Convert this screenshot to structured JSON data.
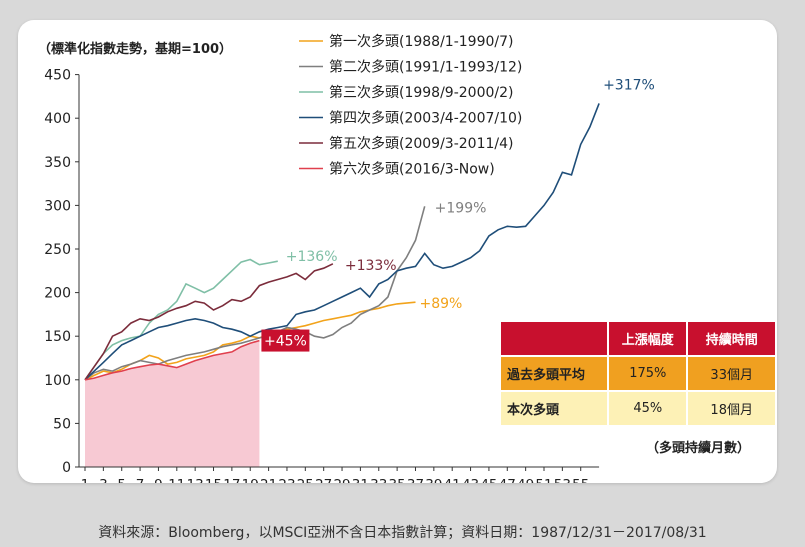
{
  "chart_data": {
    "type": "line",
    "ylabel": "（標準化指數走勢，基期=100）",
    "xlabel": "（多頭持續月數）",
    "ylim": [
      0,
      450
    ],
    "yticks": [
      0,
      50,
      100,
      150,
      200,
      250,
      300,
      350,
      400,
      450
    ],
    "xlim": [
      1,
      57
    ],
    "xticks": [
      1,
      3,
      5,
      7,
      9,
      11,
      13,
      15,
      17,
      19,
      21,
      23,
      25,
      27,
      29,
      31,
      33,
      35,
      37,
      39,
      41,
      43,
      45,
      47,
      49,
      51,
      53,
      55
    ],
    "grid": false,
    "legend_position": "top",
    "series": [
      {
        "name": "第一次多頭(1988/1-1990/7)",
        "color": "#f2a31b",
        "end_label": "+89%",
        "x": [
          1,
          2,
          3,
          4,
          5,
          6,
          7,
          8,
          9,
          10,
          11,
          12,
          13,
          14,
          15,
          16,
          17,
          18,
          19,
          20,
          21,
          22,
          23,
          24,
          25,
          26,
          27,
          28,
          29,
          30,
          31,
          32,
          33,
          34,
          35,
          36,
          37
        ],
        "y": [
          100,
          105,
          110,
          108,
          112,
          118,
          122,
          128,
          125,
          118,
          120,
          124,
          126,
          128,
          132,
          140,
          142,
          145,
          150,
          148,
          152,
          155,
          158,
          160,
          162,
          165,
          168,
          170,
          172,
          174,
          178,
          180,
          182,
          185,
          187,
          188,
          189
        ]
      },
      {
        "name": "第二次多頭(1991/1-1993/12)",
        "color": "#7f7f7f",
        "end_label": "+199%",
        "x": [
          1,
          2,
          3,
          4,
          5,
          6,
          7,
          8,
          9,
          10,
          11,
          12,
          13,
          14,
          15,
          16,
          17,
          18,
          19,
          20,
          21,
          22,
          23,
          24,
          25,
          26,
          27,
          28,
          29,
          30,
          31,
          32,
          33,
          34,
          35,
          36,
          37,
          38
        ],
        "y": [
          100,
          108,
          112,
          110,
          115,
          118,
          122,
          120,
          118,
          122,
          125,
          128,
          130,
          132,
          135,
          138,
          140,
          142,
          145,
          148,
          150,
          155,
          160,
          158,
          155,
          150,
          148,
          152,
          160,
          165,
          175,
          180,
          185,
          195,
          225,
          240,
          260,
          299
        ]
      },
      {
        "name": "第三次多頭(1998/9-2000/2)",
        "color": "#7fbfa6",
        "end_label": "+136%",
        "x": [
          1,
          2,
          3,
          4,
          5,
          6,
          7,
          8,
          9,
          10,
          11,
          12,
          13,
          14,
          15,
          16,
          17,
          18,
          19,
          20,
          21,
          22
        ],
        "y": [
          100,
          115,
          130,
          140,
          145,
          148,
          150,
          165,
          175,
          180,
          190,
          210,
          205,
          200,
          205,
          215,
          225,
          235,
          238,
          232,
          234,
          236
        ]
      },
      {
        "name": "第四次多頭(2003/4-2007/10)",
        "color": "#1f4e79",
        "end_label": "+317%",
        "x": [
          1,
          2,
          3,
          4,
          5,
          6,
          7,
          8,
          9,
          10,
          11,
          12,
          13,
          14,
          15,
          16,
          17,
          18,
          19,
          20,
          21,
          22,
          23,
          24,
          25,
          26,
          27,
          28,
          29,
          30,
          31,
          32,
          33,
          34,
          35,
          36,
          37,
          38,
          39,
          40,
          41,
          42,
          43,
          44,
          45,
          46,
          47,
          48,
          49,
          50,
          51,
          52,
          53,
          54,
          55,
          56,
          57
        ],
        "y": [
          100,
          110,
          120,
          130,
          140,
          145,
          150,
          155,
          160,
          162,
          165,
          168,
          170,
          168,
          165,
          160,
          158,
          155,
          150,
          155,
          158,
          160,
          162,
          175,
          178,
          180,
          185,
          190,
          195,
          200,
          205,
          195,
          210,
          215,
          225,
          228,
          230,
          245,
          232,
          228,
          230,
          235,
          240,
          248,
          265,
          272,
          276,
          275,
          276,
          288,
          300,
          315,
          338,
          335,
          370,
          390,
          417
        ]
      },
      {
        "name": "第五次多頭(2009/3-2011/4)",
        "color": "#7b2c3b",
        "end_label": "+133%",
        "x": [
          1,
          2,
          3,
          4,
          5,
          6,
          7,
          8,
          9,
          10,
          11,
          12,
          13,
          14,
          15,
          16,
          17,
          18,
          19,
          20,
          21,
          22,
          23,
          24,
          25,
          26,
          27,
          28
        ],
        "y": [
          100,
          115,
          130,
          150,
          155,
          165,
          170,
          168,
          172,
          178,
          182,
          185,
          190,
          188,
          180,
          185,
          192,
          190,
          195,
          208,
          212,
          215,
          218,
          222,
          215,
          225,
          228,
          233
        ]
      },
      {
        "name": "第六次多頭(2016/3-Now)",
        "color": "#e0404e",
        "end_label": "+45%",
        "x": [
          1,
          2,
          3,
          4,
          5,
          6,
          7,
          8,
          9,
          10,
          11,
          12,
          13,
          14,
          15,
          16,
          17,
          18,
          19,
          20
        ],
        "y": [
          100,
          102,
          105,
          108,
          110,
          113,
          115,
          117,
          118,
          116,
          114,
          118,
          122,
          125,
          128,
          130,
          132,
          138,
          142,
          145
        ]
      }
    ]
  },
  "table": {
    "headers": [
      "",
      "上漲幅度",
      "持續時間"
    ],
    "rows": [
      [
        "過去多頭平均",
        "175%",
        "33個月"
      ],
      [
        "本次多頭",
        "45%",
        "18個月"
      ]
    ]
  },
  "footer": "資料來源：Bloomberg，以MSCI亞洲不含日本指數計算；資料日期：1987/12/31－2017/08/31",
  "colors": {
    "shade": "#f7c9d3",
    "axis": "#333333"
  }
}
